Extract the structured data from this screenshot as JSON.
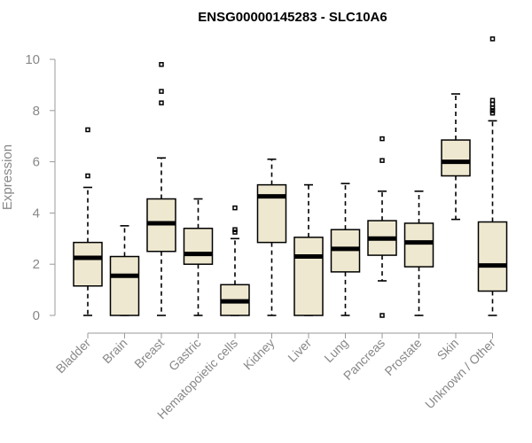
{
  "chart_data": {
    "type": "boxplot",
    "title": "ENSG00000145283 - SLC10A6",
    "ylabel": "Expression",
    "xlabel": "",
    "ylim": [
      0,
      11
    ],
    "yticks": [
      0,
      2,
      4,
      6,
      8,
      10
    ],
    "grid": false,
    "categories": [
      "Bladder",
      "Brain",
      "Breast",
      "Gastric",
      "Hematopoietic cells",
      "Kidney",
      "Liver",
      "Lung",
      "Pancreas",
      "Prostate",
      "Skin",
      "Unknown / Other"
    ],
    "boxes": [
      {
        "category": "Bladder",
        "whisker_low": 0,
        "q1": 1.15,
        "median": 2.25,
        "q3": 2.85,
        "whisker_high": 5.0,
        "outliers": [
          5.45,
          7.25
        ]
      },
      {
        "category": "Brain",
        "whisker_low": 0,
        "q1": 0,
        "median": 1.55,
        "q3": 2.3,
        "whisker_high": 3.5,
        "outliers": []
      },
      {
        "category": "Breast",
        "whisker_low": 0,
        "q1": 2.5,
        "median": 3.6,
        "q3": 4.55,
        "whisker_high": 6.15,
        "outliers": [
          8.3,
          8.75,
          9.8
        ]
      },
      {
        "category": "Gastric",
        "whisker_low": 0,
        "q1": 2.0,
        "median": 2.4,
        "q3": 3.4,
        "whisker_high": 4.55,
        "outliers": []
      },
      {
        "category": "Hematopoietic cells",
        "whisker_low": 0,
        "q1": 0,
        "median": 0.55,
        "q3": 1.2,
        "whisker_high": 3.0,
        "outliers": [
          3.25,
          3.35,
          4.2
        ]
      },
      {
        "category": "Kidney",
        "whisker_low": 0,
        "q1": 2.85,
        "median": 4.65,
        "q3": 5.1,
        "whisker_high": 6.1,
        "outliers": []
      },
      {
        "category": "Liver",
        "whisker_low": 0,
        "q1": 0,
        "median": 2.3,
        "q3": 3.05,
        "whisker_high": 5.1,
        "outliers": []
      },
      {
        "category": "Lung",
        "whisker_low": 0,
        "q1": 1.7,
        "median": 2.6,
        "q3": 3.35,
        "whisker_high": 5.15,
        "outliers": []
      },
      {
        "category": "Pancreas",
        "whisker_low": 1.35,
        "q1": 2.35,
        "median": 3.0,
        "q3": 3.7,
        "whisker_high": 4.85,
        "outliers": [
          0,
          6.05,
          6.9
        ]
      },
      {
        "category": "Prostate",
        "whisker_low": 0,
        "q1": 1.9,
        "median": 2.85,
        "q3": 3.6,
        "whisker_high": 4.85,
        "outliers": []
      },
      {
        "category": "Skin",
        "whisker_low": 3.75,
        "q1": 5.45,
        "median": 6.0,
        "q3": 6.85,
        "whisker_high": 8.65,
        "outliers": []
      },
      {
        "category": "Unknown / Other",
        "whisker_low": 0,
        "q1": 0.95,
        "median": 1.95,
        "q3": 3.65,
        "whisker_high": 7.6,
        "outliers": [
          7.9,
          8.0,
          8.1,
          8.25,
          8.4,
          10.8
        ]
      }
    ]
  }
}
